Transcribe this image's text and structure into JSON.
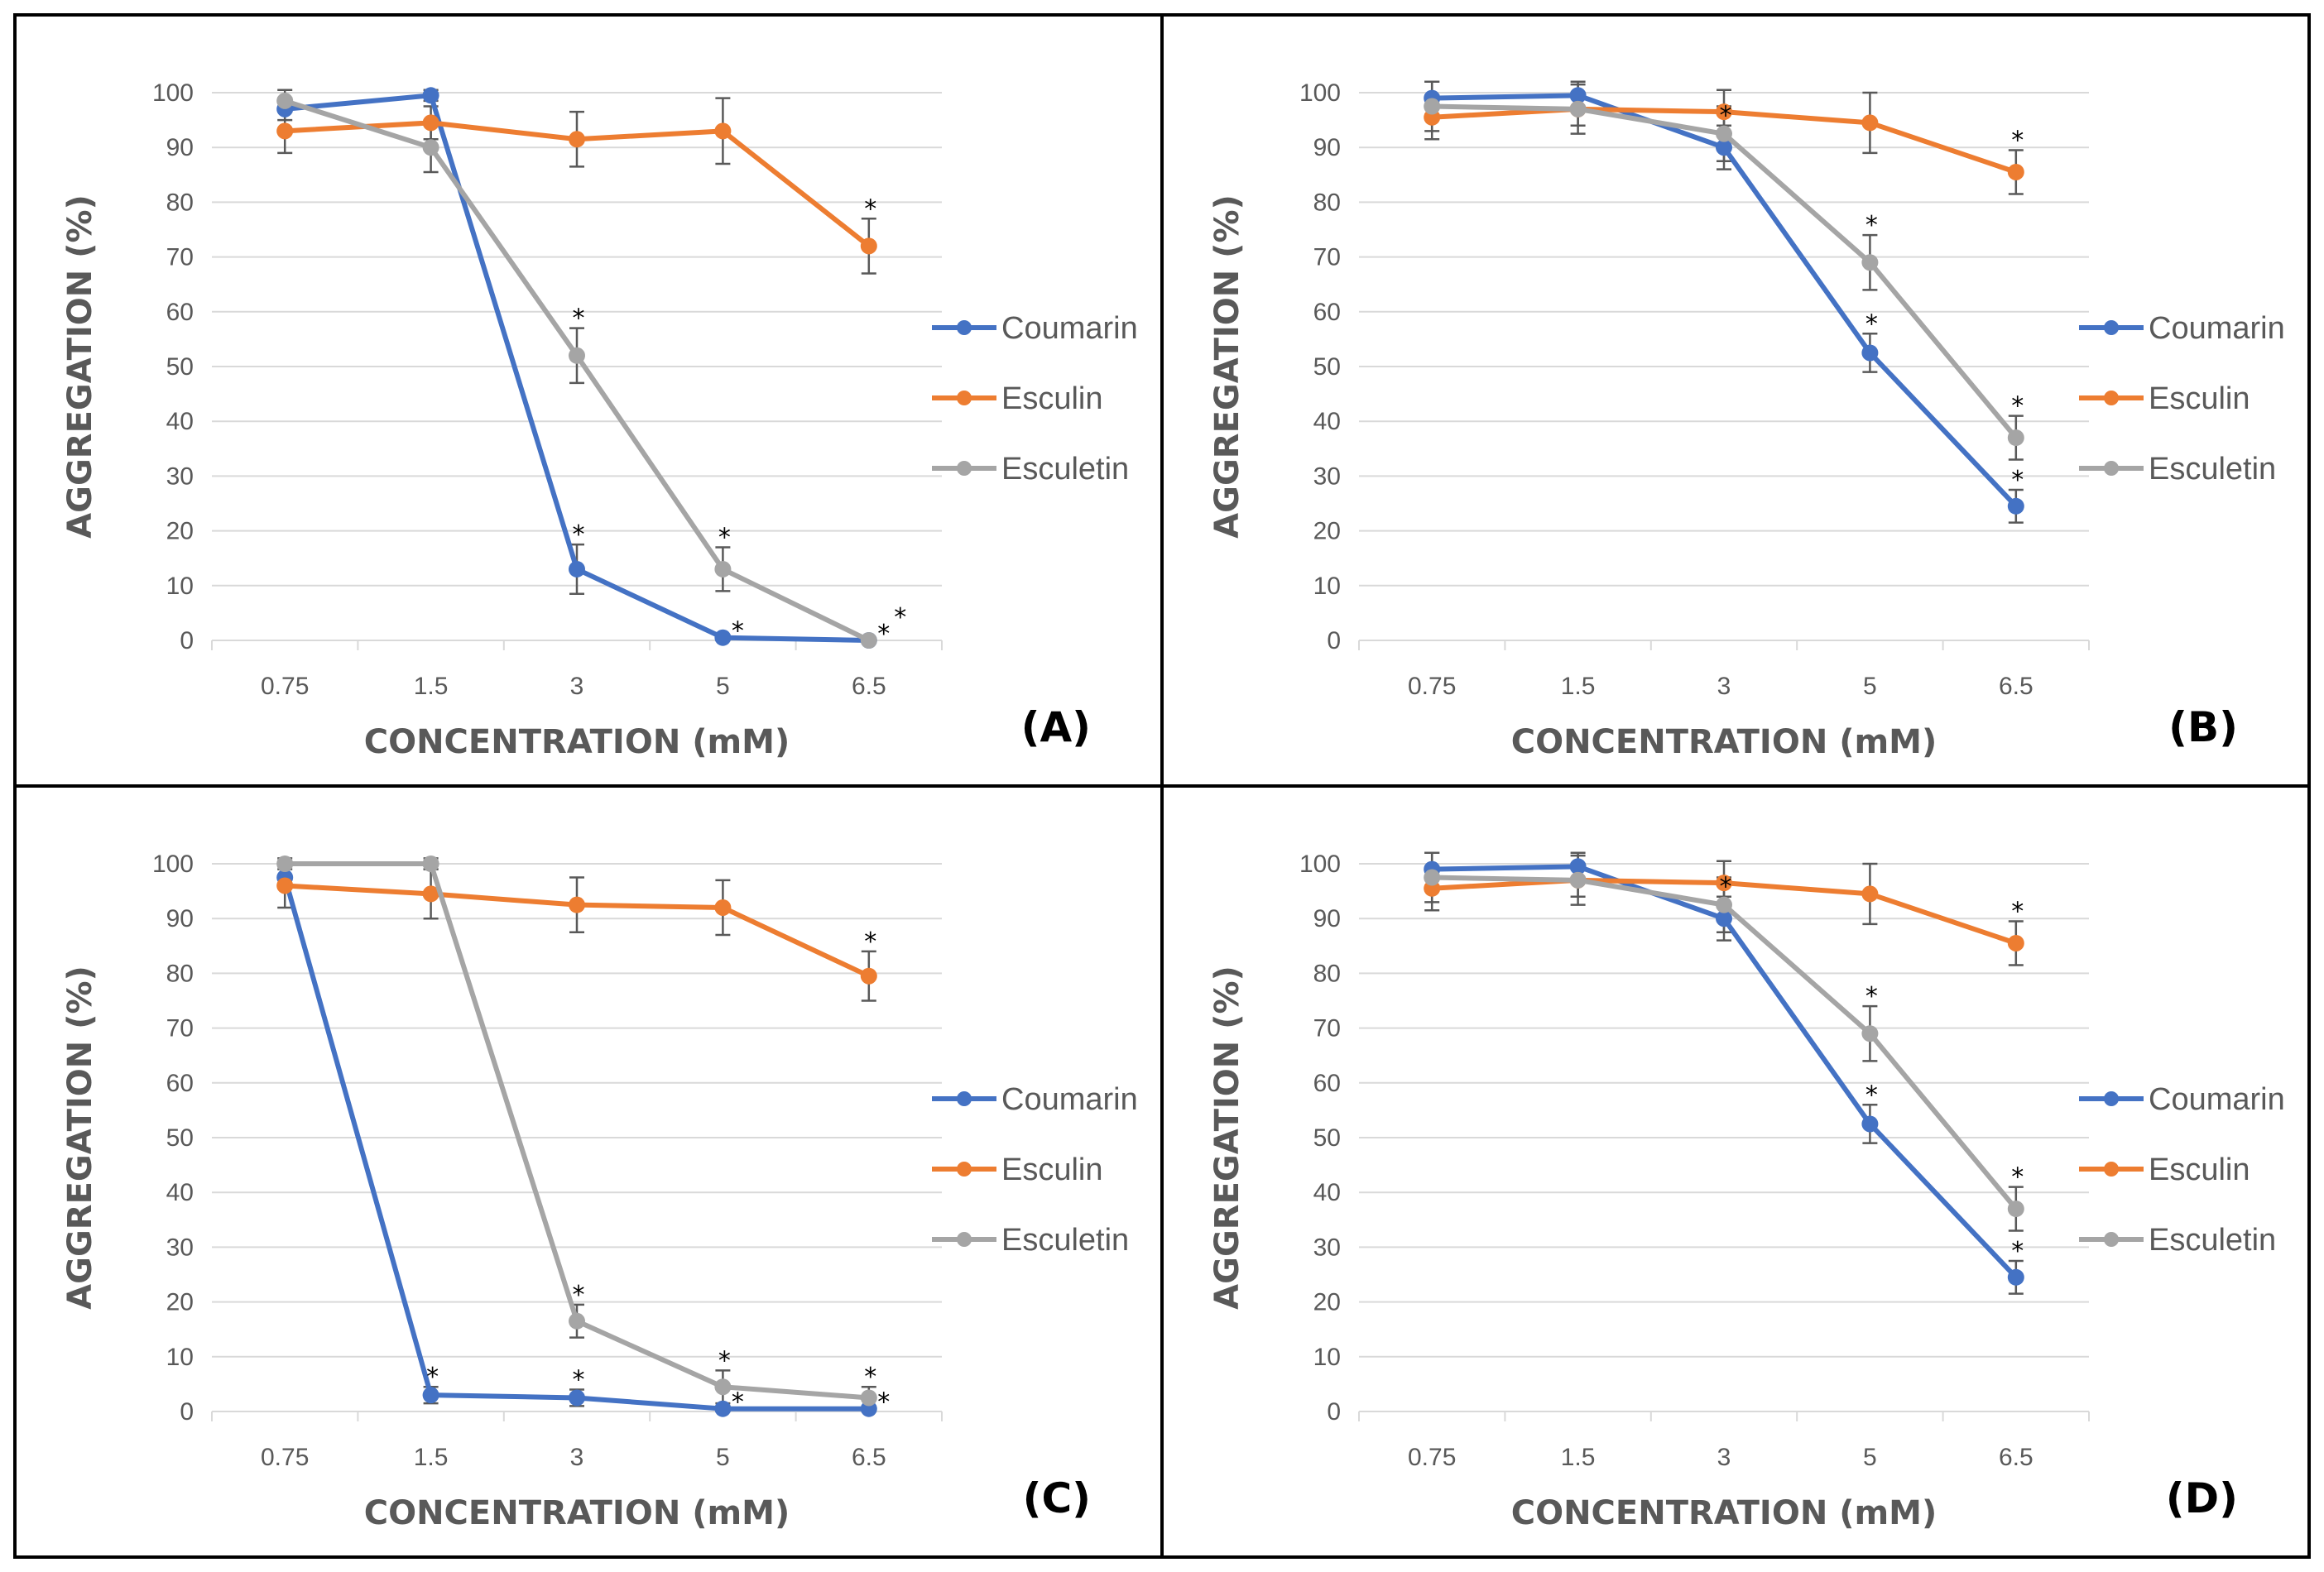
{
  "colors": {
    "Coumarin": "#4472C4",
    "Esculin": "#ED7D31",
    "Esculetin": "#A5A5A5",
    "grid": "#D9D9D9",
    "border": "#000000",
    "errorbar": "#595959"
  },
  "chart_data": [
    {
      "type": "line",
      "panel_label": "(A)",
      "categories": [
        "0.75",
        "1.5",
        "3",
        "5",
        "6.5"
      ],
      "xlabel": "CONCENTRATION (mM)",
      "ylabel": "AGGREGATION (%)",
      "ylim": [
        0,
        100
      ],
      "yticks": [
        "0",
        "10",
        "20",
        "30",
        "40",
        "50",
        "60",
        "70",
        "80",
        "90",
        "100"
      ],
      "grid": true,
      "legend_position": "right",
      "series": [
        {
          "name": "Coumarin",
          "values": [
            97,
            99.5,
            13,
            0.5,
            0
          ],
          "errors": [
            2,
            1,
            4.5,
            0.5,
            0
          ],
          "significance": [
            "",
            "",
            "*",
            "*",
            "*"
          ]
        },
        {
          "name": "Esculin",
          "values": [
            93,
            94.5,
            91.5,
            93,
            72
          ],
          "errors": [
            4,
            3,
            5,
            6,
            5
          ],
          "significance": [
            "",
            "",
            "",
            "",
            "*"
          ]
        },
        {
          "name": "Esculetin",
          "values": [
            98.5,
            90,
            52,
            13,
            0
          ],
          "errors": [
            2,
            4.5,
            5,
            4,
            0
          ],
          "significance": [
            "",
            "",
            "*",
            "*",
            "*"
          ]
        }
      ]
    },
    {
      "type": "line",
      "panel_label": "(B)",
      "categories": [
        "0.75",
        "1.5",
        "3",
        "5",
        "6.5"
      ],
      "xlabel": "CONCENTRATION (mM)",
      "ylabel": "AGGREGATION (%)",
      "ylim": [
        0,
        100
      ],
      "yticks": [
        "0",
        "10",
        "20",
        "30",
        "40",
        "50",
        "60",
        "70",
        "80",
        "90",
        "100"
      ],
      "grid": true,
      "legend_position": "right",
      "series": [
        {
          "name": "Coumarin",
          "values": [
            99,
            99.5,
            90,
            52.5,
            24.5
          ],
          "errors": [
            3,
            3,
            4,
            3.5,
            3
          ],
          "significance": [
            "",
            "",
            "*",
            "*",
            "*"
          ]
        },
        {
          "name": "Esculin",
          "values": [
            95.5,
            97,
            96.5,
            94.5,
            85.5
          ],
          "errors": [
            4,
            3,
            4,
            5.5,
            4
          ],
          "significance": [
            "",
            "",
            "",
            "",
            "*"
          ]
        },
        {
          "name": "Esculetin",
          "values": [
            97.5,
            97,
            92.5,
            69,
            37
          ],
          "errors": [
            4.5,
            4.5,
            5,
            5,
            4
          ],
          "significance": [
            "",
            "",
            "",
            "*",
            "*"
          ]
        }
      ]
    },
    {
      "type": "line",
      "panel_label": "(C)",
      "categories": [
        "0.75",
        "1.5",
        "3",
        "5",
        "6.5"
      ],
      "xlabel": "CONCENTRATION (mM)",
      "ylabel": "AGGREGATION (%)",
      "ylim": [
        0,
        100
      ],
      "yticks": [
        "0",
        "10",
        "20",
        "30",
        "40",
        "50",
        "60",
        "70",
        "80",
        "90",
        "100"
      ],
      "grid": true,
      "legend_position": "right",
      "series": [
        {
          "name": "Coumarin",
          "values": [
            97.5,
            3,
            2.5,
            0.5,
            0.5
          ],
          "errors": [
            2,
            1.5,
            1.5,
            0.5,
            0.5
          ],
          "significance": [
            "",
            "*",
            "*",
            "*",
            "*"
          ]
        },
        {
          "name": "Esculin",
          "values": [
            96,
            94.5,
            92.5,
            92,
            79.5
          ],
          "errors": [
            4,
            4.5,
            5,
            5,
            4.5
          ],
          "significance": [
            "",
            "",
            "",
            "",
            "*"
          ]
        },
        {
          "name": "Esculetin",
          "values": [
            100,
            100,
            16.5,
            4.5,
            2.5
          ],
          "errors": [
            1,
            1,
            3,
            3,
            2
          ],
          "significance": [
            "",
            "",
            "*",
            "*",
            "*"
          ]
        }
      ]
    },
    {
      "type": "line",
      "panel_label": "(D)",
      "categories": [
        "0.75",
        "1.5",
        "3",
        "5",
        "6.5"
      ],
      "xlabel": "CONCENTRATION (mM)",
      "ylabel": "AGGREGATION (%)",
      "ylim": [
        0,
        100
      ],
      "yticks": [
        "0",
        "10",
        "20",
        "30",
        "40",
        "50",
        "60",
        "70",
        "80",
        "90",
        "100"
      ],
      "grid": true,
      "legend_position": "right",
      "series": [
        {
          "name": "Coumarin",
          "values": [
            99,
            99.5,
            90,
            52.5,
            24.5
          ],
          "errors": [
            3,
            3,
            4,
            3.5,
            3
          ],
          "significance": [
            "",
            "",
            "*",
            "*",
            "*"
          ]
        },
        {
          "name": "Esculin",
          "values": [
            95.5,
            97,
            96.5,
            94.5,
            85.5
          ],
          "errors": [
            4,
            3,
            4,
            5.5,
            4
          ],
          "significance": [
            "",
            "",
            "",
            "",
            "*"
          ]
        },
        {
          "name": "Esculetin",
          "values": [
            97.5,
            97,
            92.5,
            69,
            37
          ],
          "errors": [
            4.5,
            4.5,
            5,
            5,
            4
          ],
          "significance": [
            "",
            "",
            "",
            "*",
            "*"
          ]
        }
      ]
    }
  ]
}
